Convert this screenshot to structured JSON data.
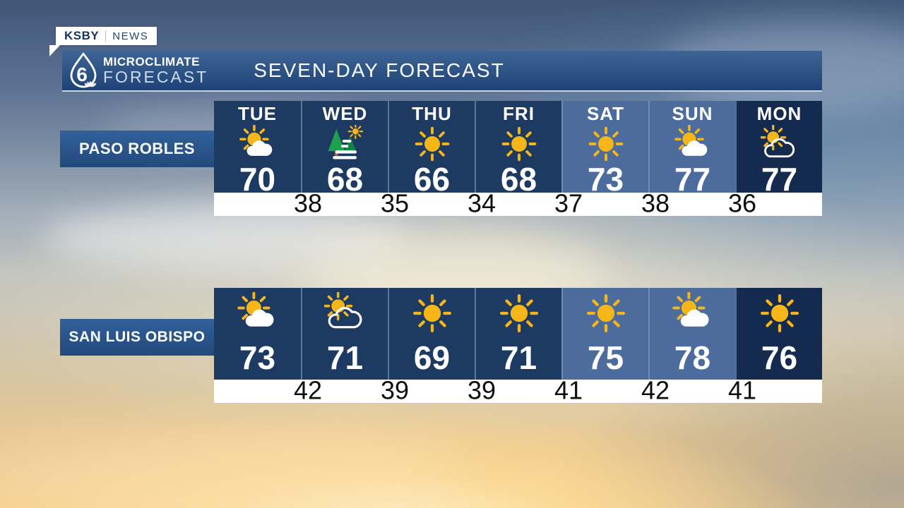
{
  "badge": {
    "station": "KSBY",
    "division": "NEWS"
  },
  "header": {
    "logo_number": "6",
    "logo_line1": "MICROCLIMATE",
    "logo_line2": "FORECAST",
    "logo_icon": "water-drop-6-nbc-peacock",
    "title": "SEVEN-DAY FORECAST"
  },
  "chart_data": {
    "type": "table",
    "title": "SEVEN-DAY FORECAST",
    "columns": [
      "TUE",
      "WED",
      "THU",
      "FRI",
      "SAT",
      "SUN",
      "MON"
    ],
    "column_styles": [
      "dark",
      "dark",
      "dark",
      "dark",
      "weekend",
      "weekend",
      "darkest"
    ],
    "rows": [
      {
        "location": "PASO ROBLES",
        "conditions": [
          "sun-cloud",
          "fog-trees",
          "sunny",
          "sunny",
          "sunny",
          "sun-cloud",
          "sun-outline-cloud"
        ],
        "highs": [
          70,
          68,
          66,
          68,
          73,
          77,
          77
        ],
        "overnight_lows": [
          38,
          35,
          34,
          37,
          38,
          36
        ]
      },
      {
        "location": "SAN LUIS OBISPO",
        "conditions": [
          "sun-cloud",
          "sun-outline-cloud",
          "sunny",
          "sunny",
          "sunny",
          "sun-cloud",
          "sunny"
        ],
        "highs": [
          73,
          71,
          69,
          71,
          75,
          78,
          76
        ],
        "overnight_lows": [
          42,
          39,
          39,
          41,
          42,
          41
        ]
      }
    ]
  },
  "colors": {
    "header_bar": "#2f5587",
    "cell_dark": "#1d3a63",
    "cell_weekend": "#4c6c9d",
    "cell_darkest": "#142a4e",
    "label_box": "#2a5690",
    "sun_yellow": "#f7b617",
    "tree_green": "#1ca04e",
    "lows_bar_bg": "#ffffff",
    "lows_text": "#0d0d0d",
    "badge_text": "#15345f"
  }
}
